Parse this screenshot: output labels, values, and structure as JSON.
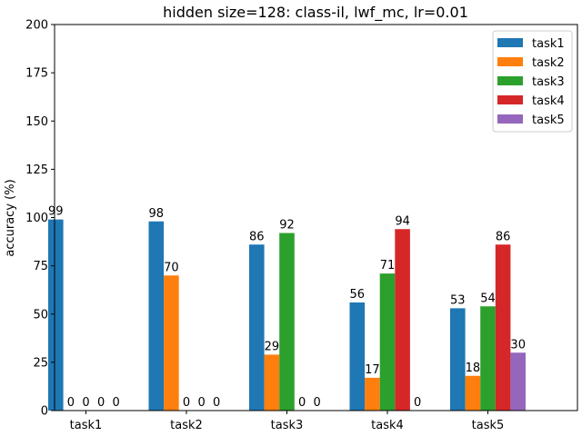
{
  "chart_data": {
    "type": "bar",
    "title": "hidden size=128: class-il, lwf_mc, lr=0.01",
    "xlabel": "",
    "ylabel": "accuracy (%)",
    "ylim": [
      0,
      200
    ],
    "yticks": [
      0,
      25,
      50,
      75,
      100,
      125,
      150,
      175,
      200
    ],
    "categories": [
      "task1",
      "task2",
      "task3",
      "task4",
      "task5"
    ],
    "legend_position": "top-right",
    "grid": false,
    "series": [
      {
        "name": "task1",
        "color": "#1f77b4",
        "values": [
          99,
          98,
          86,
          56,
          53
        ]
      },
      {
        "name": "task2",
        "color": "#ff7f0e",
        "values": [
          0,
          70,
          29,
          17,
          18
        ]
      },
      {
        "name": "task3",
        "color": "#2ca02c",
        "values": [
          0,
          0,
          92,
          71,
          54
        ]
      },
      {
        "name": "task4",
        "color": "#d62728",
        "values": [
          0,
          0,
          0,
          94,
          86
        ]
      },
      {
        "name": "task5",
        "color": "#9467bd",
        "values": [
          0,
          0,
          0,
          0,
          30
        ]
      }
    ]
  }
}
